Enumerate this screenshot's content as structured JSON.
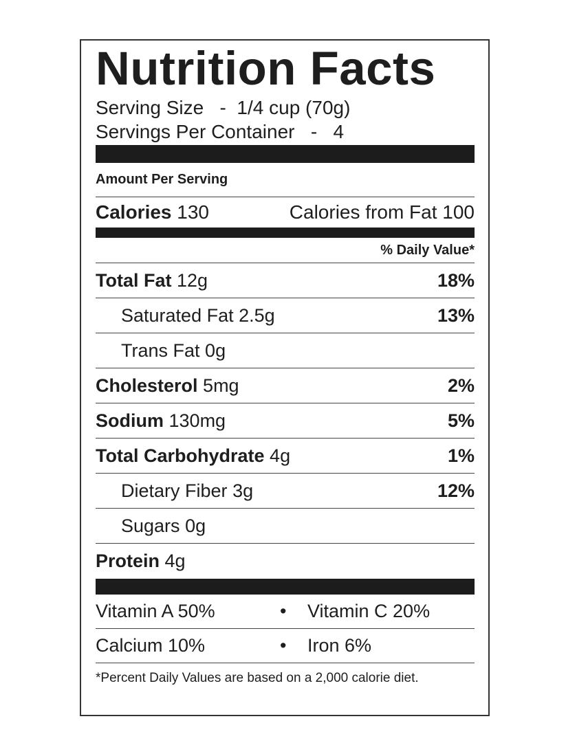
{
  "title": "Nutrition Facts",
  "serving_size": {
    "label": "Serving Size",
    "sep": "-",
    "value": "1/4 cup (70g)"
  },
  "servings_per_container": {
    "label": "Servings Per Container",
    "sep": "-",
    "value": "4"
  },
  "amount_per_serving": "Amount Per Serving",
  "calories": {
    "label": "Calories",
    "value": "130",
    "from_fat_label": "Calories from Fat",
    "from_fat_value": "100"
  },
  "daily_value_header": "% Daily Value*",
  "nutrients": [
    {
      "name": "Total Fat",
      "amount": "12g",
      "dv": "18%",
      "bold": true,
      "indent": false
    },
    {
      "name": "Saturated Fat",
      "amount": "2.5g",
      "dv": "13%",
      "bold": false,
      "indent": true
    },
    {
      "name": "Trans Fat",
      "amount": "0g",
      "dv": "",
      "bold": false,
      "indent": true
    },
    {
      "name": "Cholesterol",
      "amount": "5mg",
      "dv": "2%",
      "bold": true,
      "indent": false
    },
    {
      "name": "Sodium",
      "amount": "130mg",
      "dv": "5%",
      "bold": true,
      "indent": false
    },
    {
      "name": "Total Carbohydrate",
      "amount": "4g",
      "dv": "1%",
      "bold": true,
      "indent": false
    },
    {
      "name": "Dietary Fiber",
      "amount": "3g",
      "dv": "12%",
      "bold": false,
      "indent": true
    },
    {
      "name": "Sugars",
      "amount": "0g",
      "dv": "",
      "bold": false,
      "indent": true
    },
    {
      "name": "Protein",
      "amount": "4g",
      "dv": "",
      "bold": true,
      "indent": false
    }
  ],
  "vitamins": [
    {
      "left": "Vitamin A 50%",
      "bullet": "•",
      "right": "Vitamin C 20%"
    },
    {
      "left": "Calcium 10%",
      "bullet": "•",
      "right": "Iron 6%"
    }
  ],
  "footnote": "*Percent Daily Values are based on a 2,000 calorie diet."
}
